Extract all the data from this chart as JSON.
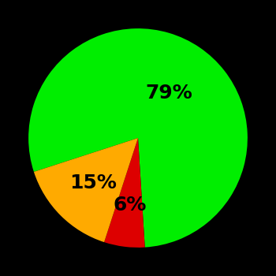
{
  "values": [
    79,
    6,
    15
  ],
  "colors": [
    "#00ee00",
    "#dd0000",
    "#ffaa00"
  ],
  "labels": [
    "79%",
    "6%",
    "15%"
  ],
  "background_color": "#000000",
  "startangle": 198,
  "label_fontsize": 18,
  "label_fontweight": "bold",
  "label_color": "#000000",
  "label_radii": [
    0.5,
    0.62,
    0.58
  ]
}
